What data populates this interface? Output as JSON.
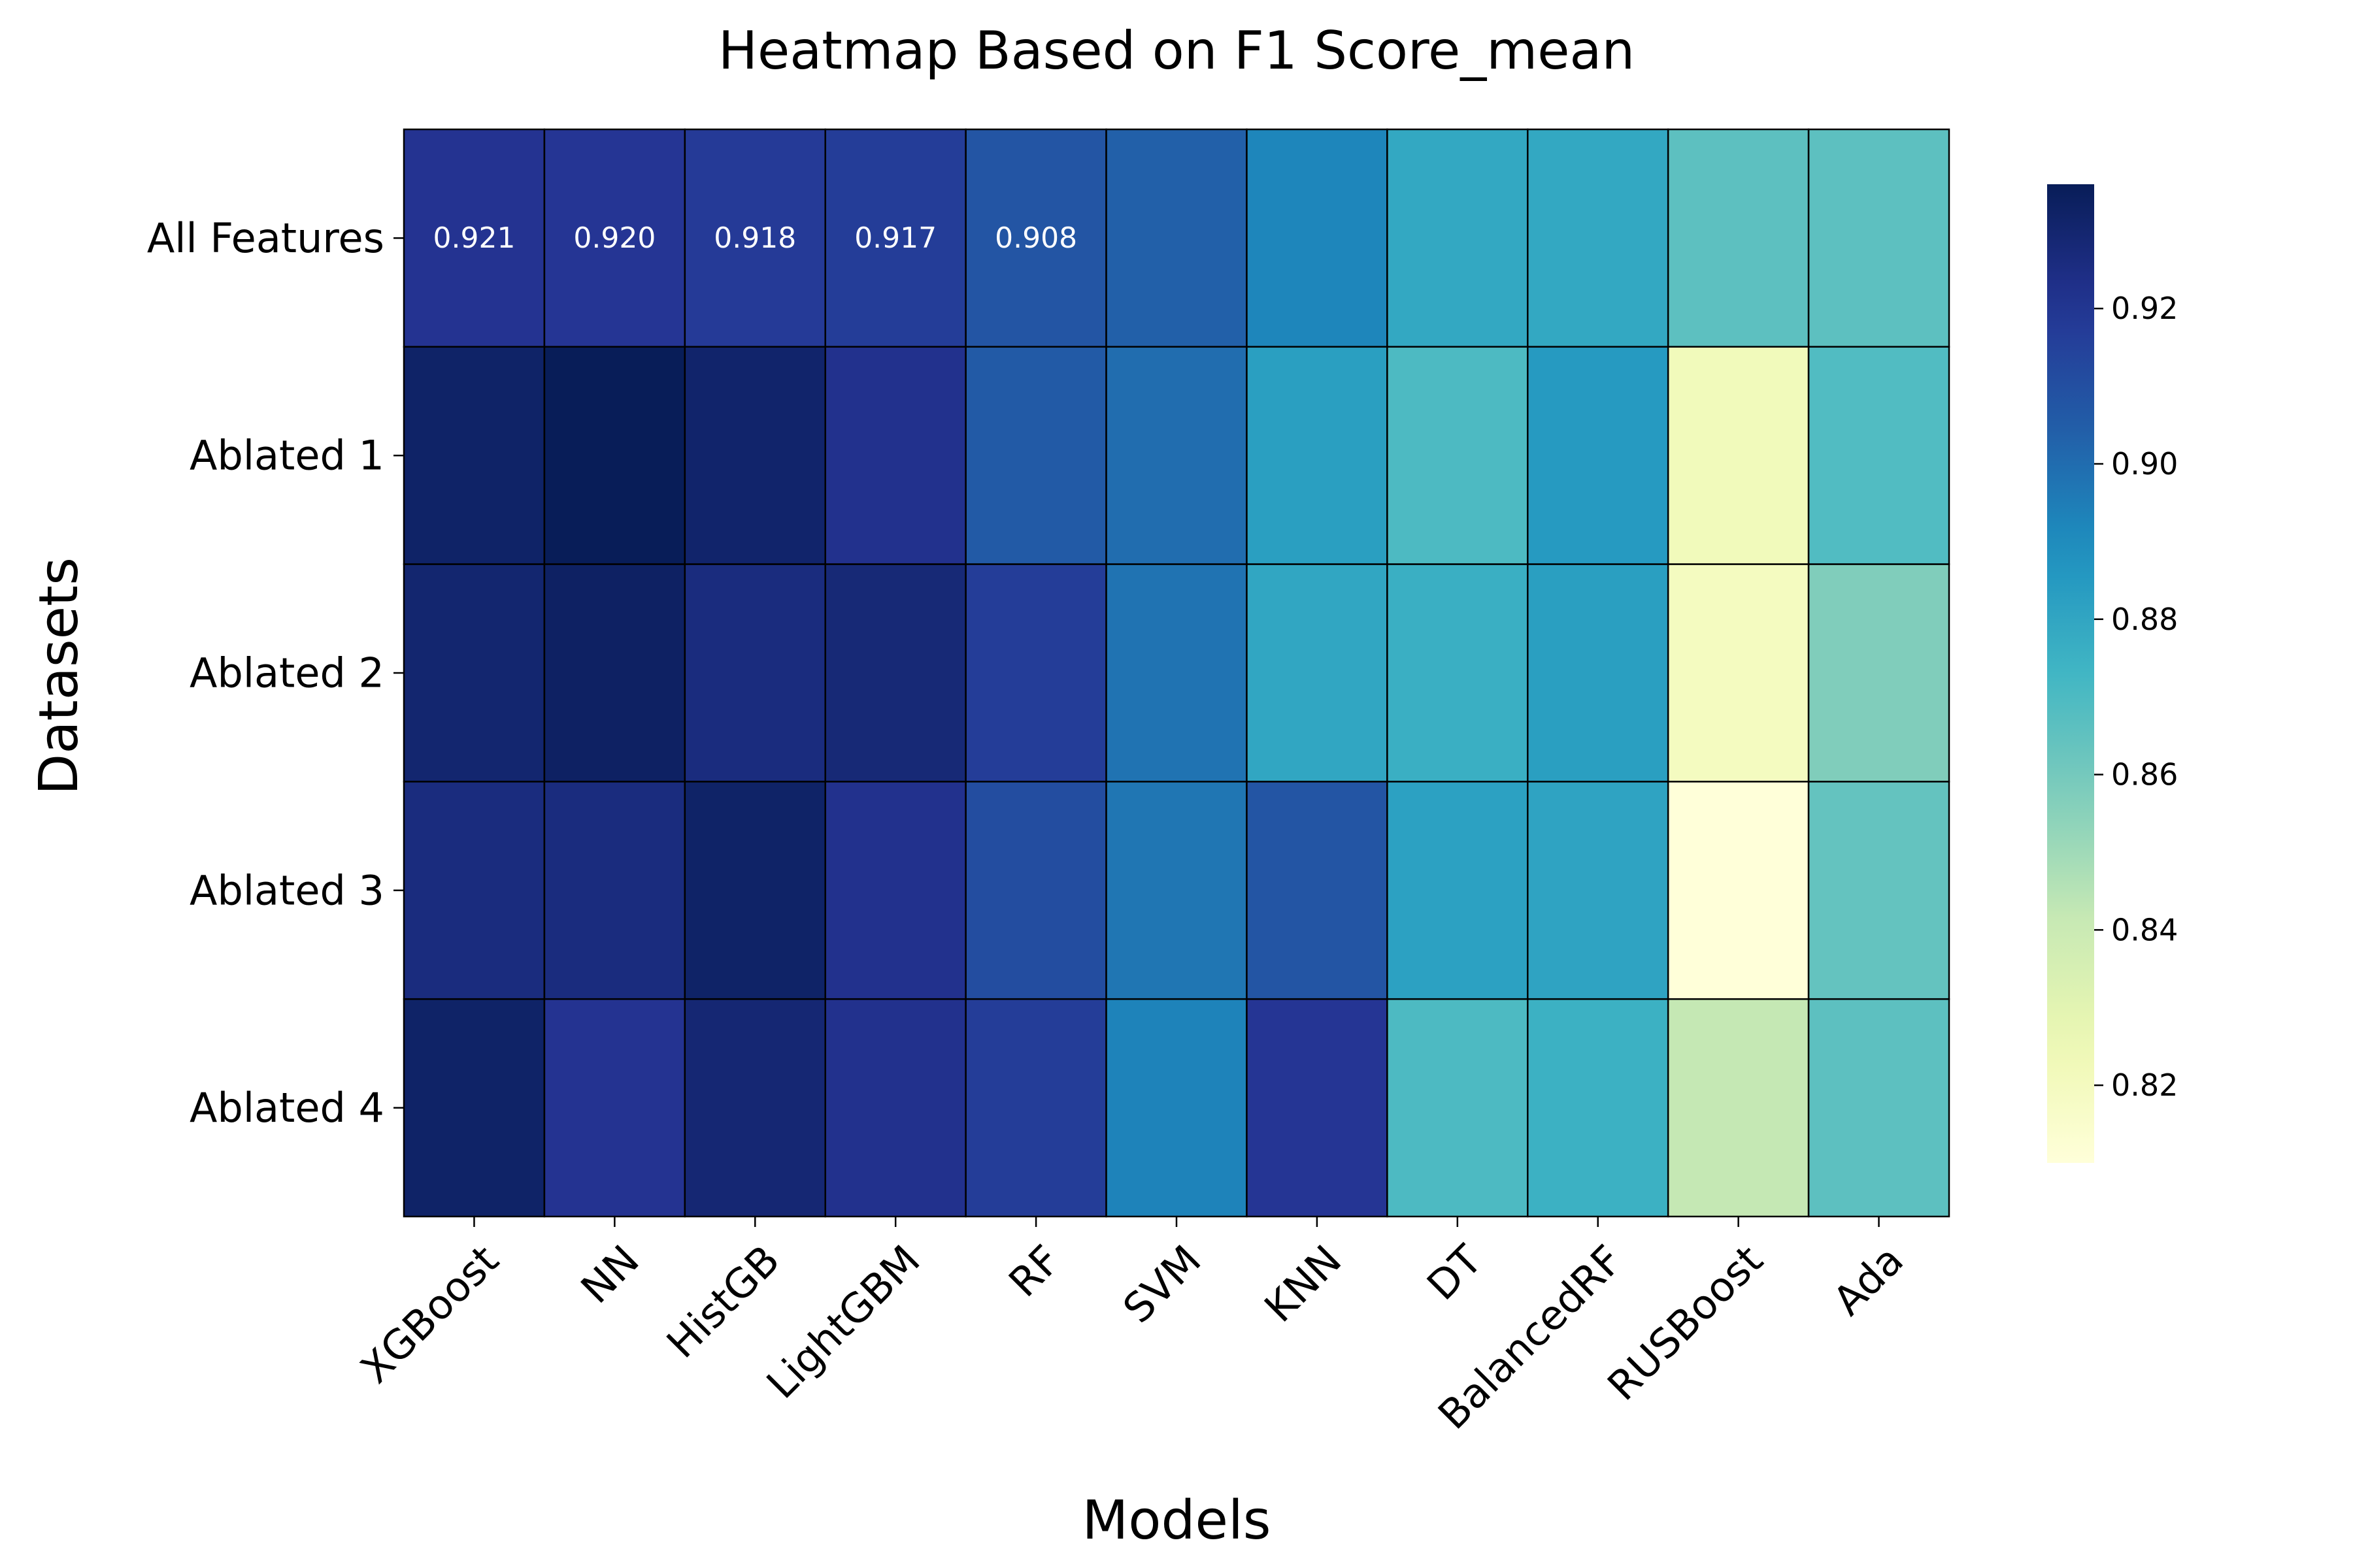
{
  "chart_data": {
    "type": "heatmap",
    "title": "Heatmap Based on F1 Score_mean",
    "xlabel": "Models",
    "ylabel": "Datasets",
    "colormap": "YlGnBu",
    "x_categories": [
      "XGBoost",
      "NN",
      "HistGB",
      "LightGBM",
      "RF",
      "SVM",
      "KNN",
      "DT",
      "BalancedRF",
      "RUSBoost",
      "Ada"
    ],
    "y_categories": [
      "All Features",
      "Ablated 1",
      "Ablated 2",
      "Ablated 3",
      "Ablated 4"
    ],
    "values": [
      [
        0.921,
        0.92,
        0.918,
        0.917,
        0.908,
        0.904,
        0.892,
        0.879,
        0.879,
        0.866,
        0.866
      ],
      [
        0.932,
        0.936,
        0.931,
        0.922,
        0.906,
        0.9,
        0.883,
        0.87,
        0.885,
        0.822,
        0.869
      ],
      [
        0.93,
        0.933,
        0.926,
        0.928,
        0.917,
        0.898,
        0.88,
        0.876,
        0.883,
        0.82,
        0.857
      ],
      [
        0.926,
        0.926,
        0.932,
        0.922,
        0.911,
        0.897,
        0.908,
        0.882,
        0.881,
        0.81,
        0.864
      ],
      [
        0.932,
        0.921,
        0.929,
        0.922,
        0.917,
        0.893,
        0.92,
        0.87,
        0.875,
        0.842,
        0.866
      ]
    ],
    "annotations": [
      {
        "row": 0,
        "col": 0,
        "text": "0.921"
      },
      {
        "row": 0,
        "col": 1,
        "text": "0.920"
      },
      {
        "row": 0,
        "col": 2,
        "text": "0.918"
      },
      {
        "row": 0,
        "col": 3,
        "text": "0.917"
      },
      {
        "row": 0,
        "col": 4,
        "text": "0.908"
      }
    ],
    "colorbar": {
      "range": [
        0.81,
        0.936
      ],
      "ticks": [
        0.82,
        0.84,
        0.86,
        0.88,
        0.9,
        0.92
      ],
      "tick_labels": [
        "0.82",
        "0.84",
        "0.86",
        "0.88",
        "0.90",
        "0.92"
      ]
    },
    "grid": false
  }
}
